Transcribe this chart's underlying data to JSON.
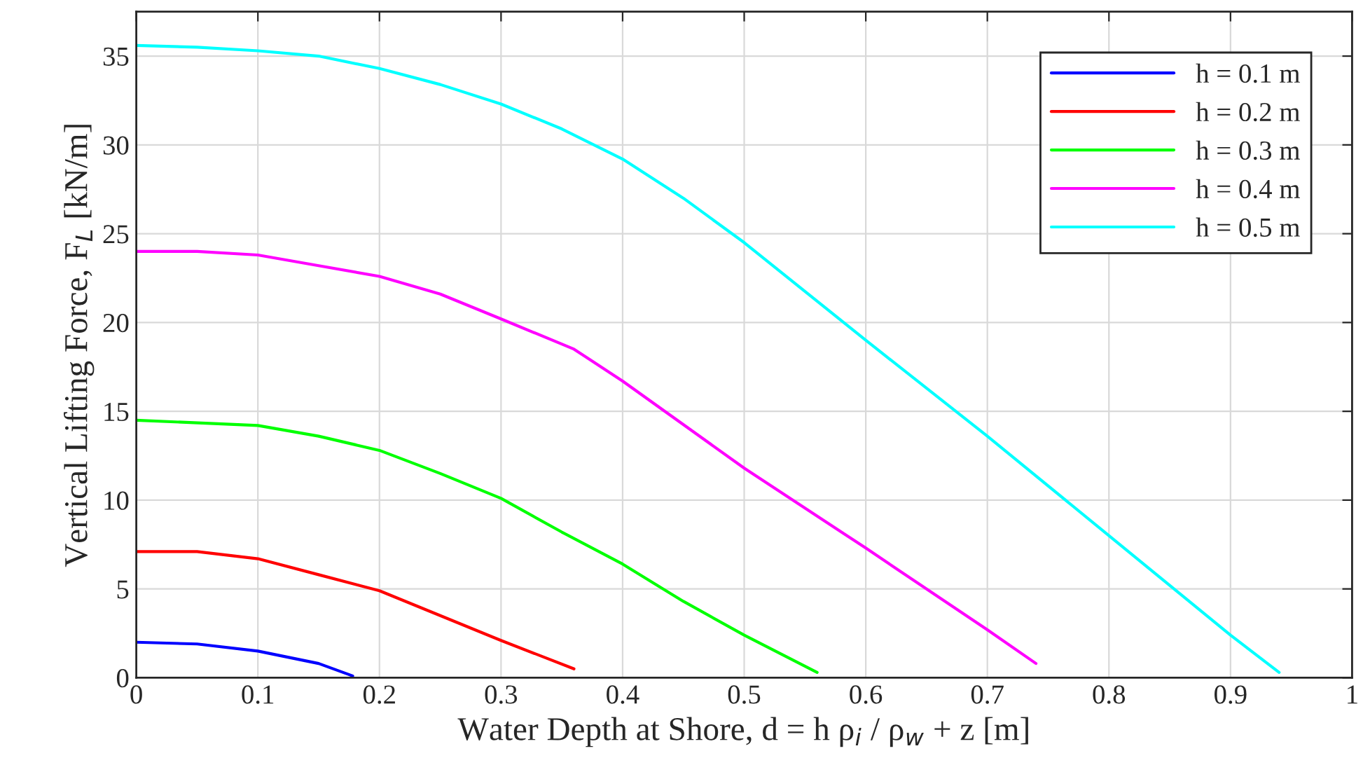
{
  "chart_data": {
    "type": "line",
    "xlabel": "Water Depth at Shore, d = h ρ$_{i}$ / ρ$_{w}$ + z [m]",
    "ylabel": "Vertical Lifting Force, F$_{L}$ [kN/m]",
    "xlim": [
      0,
      1
    ],
    "xticks": [
      0,
      0.1,
      0.2,
      0.3,
      0.4,
      0.5,
      0.6,
      0.7,
      0.8,
      0.9,
      1
    ],
    "ylim": [
      0,
      37.5
    ],
    "yticks": [
      0,
      5,
      10,
      15,
      20,
      25,
      30,
      35
    ],
    "grid": true,
    "legend": "top right",
    "line_style": "solid",
    "marker": "none",
    "series": [
      {
        "name": "h = 0.1 m",
        "color": "#0000ff",
        "x": [
          0,
          0.05,
          0.1,
          0.15,
          0.178
        ],
        "values": [
          2.0,
          1.9,
          1.5,
          0.8,
          0.1
        ]
      },
      {
        "name": "h = 0.2 m",
        "color": "#ff0000",
        "x": [
          0,
          0.05,
          0.1,
          0.15,
          0.2,
          0.25,
          0.3,
          0.36
        ],
        "values": [
          7.1,
          7.1,
          6.7,
          5.8,
          4.9,
          3.5,
          2.1,
          0.5
        ]
      },
      {
        "name": "h = 0.3 m",
        "color": "#00ff00",
        "x": [
          0,
          0.1,
          0.15,
          0.2,
          0.25,
          0.3,
          0.35,
          0.4,
          0.45,
          0.5,
          0.56
        ],
        "values": [
          14.5,
          14.2,
          13.6,
          12.8,
          11.5,
          10.1,
          8.2,
          6.4,
          4.3,
          2.4,
          0.3
        ]
      },
      {
        "name": "h = 0.4 m",
        "color": "#ff00ff",
        "x": [
          0,
          0.05,
          0.1,
          0.15,
          0.2,
          0.25,
          0.3,
          0.36,
          0.4,
          0.5,
          0.6,
          0.7,
          0.74
        ],
        "values": [
          24.0,
          24.0,
          23.8,
          23.2,
          22.6,
          21.6,
          20.2,
          18.5,
          16.7,
          11.8,
          7.3,
          2.7,
          0.8
        ]
      },
      {
        "name": "h = 0.5 m",
        "color": "#00ffff",
        "x": [
          0,
          0.05,
          0.1,
          0.15,
          0.2,
          0.25,
          0.3,
          0.35,
          0.4,
          0.45,
          0.5,
          0.6,
          0.7,
          0.8,
          0.9,
          0.94
        ],
        "values": [
          35.6,
          35.5,
          35.3,
          35.0,
          34.3,
          33.4,
          32.3,
          30.9,
          29.2,
          27.0,
          24.5,
          19.0,
          13.6,
          8.0,
          2.4,
          0.3
        ]
      }
    ]
  }
}
